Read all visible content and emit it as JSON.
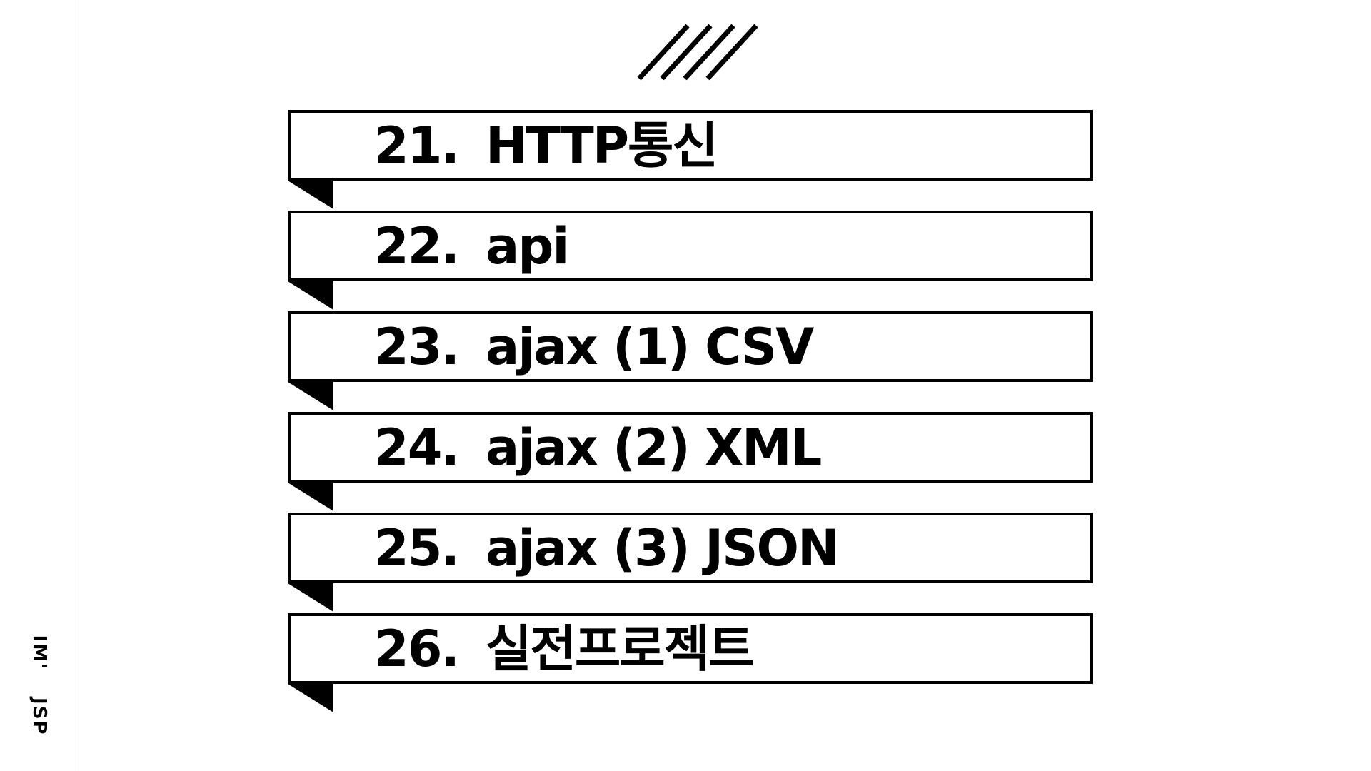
{
  "side_label": {
    "prefix": "IM'",
    "course": "JSP"
  },
  "items": [
    {
      "number": "21.",
      "title": "HTTP통신"
    },
    {
      "number": "22.",
      "title": "api"
    },
    {
      "number": "23.",
      "title": "ajax (1) CSV"
    },
    {
      "number": "24.",
      "title": "ajax (2) XML"
    },
    {
      "number": "25.",
      "title": "ajax (3) JSON"
    },
    {
      "number": "26.",
      "title": "실전프로젝트"
    }
  ],
  "decoration": {
    "slashes_icon": "four-diagonal-slashes-icon",
    "accent": "#000000",
    "rule": "#8a8a8a",
    "background": "#ffffff"
  }
}
